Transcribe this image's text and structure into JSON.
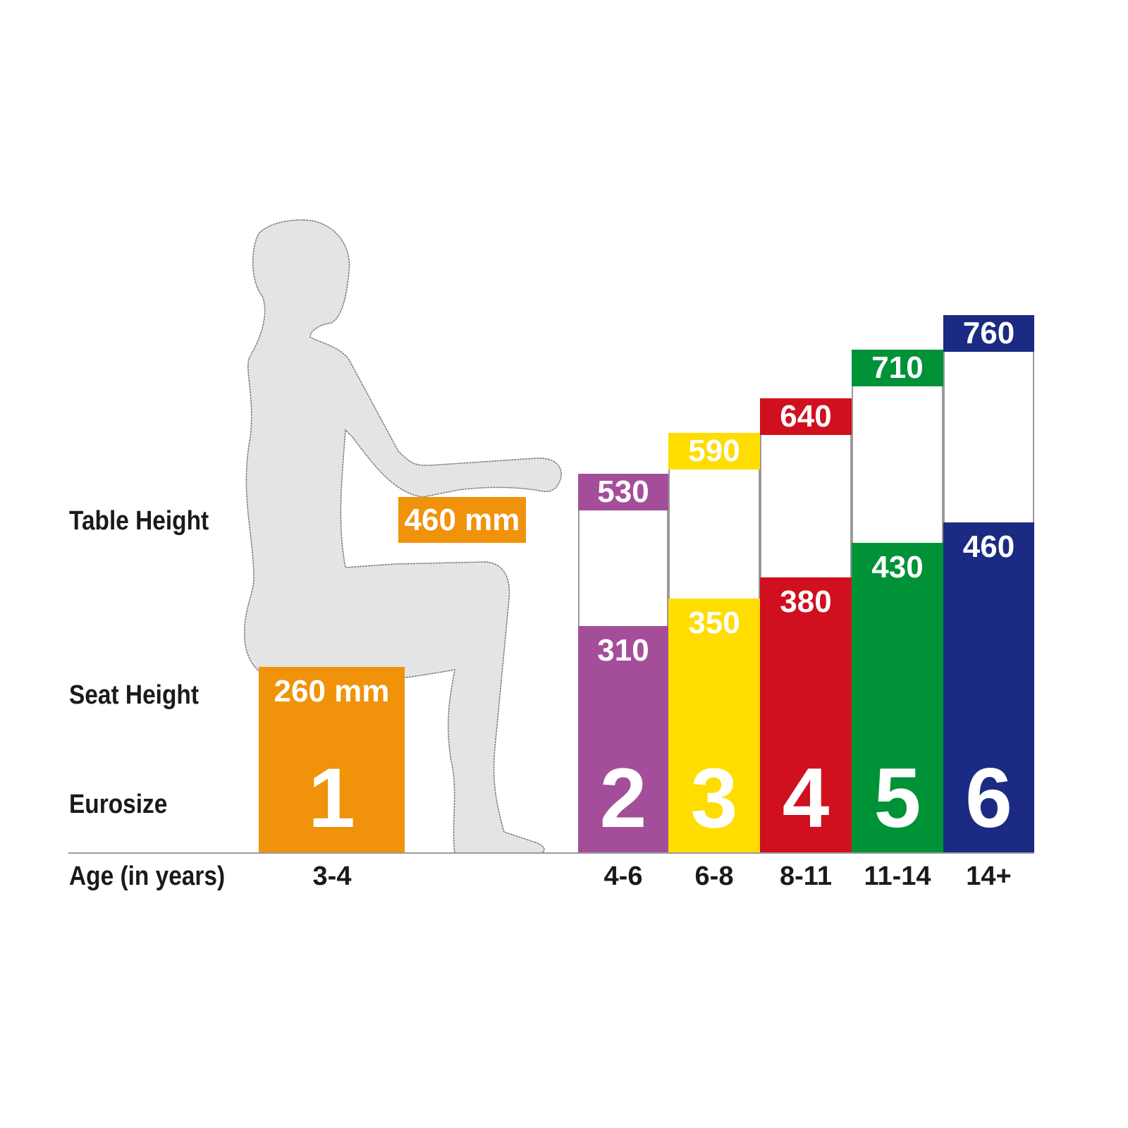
{
  "chart_data": {
    "type": "bar",
    "row_labels": {
      "table_height": "Table Height",
      "seat_height": "Seat Height",
      "eurosize": "Eurosize",
      "age": "Age (in years)"
    },
    "unit": "mm",
    "example": {
      "eurosize": "1",
      "age": "3-4",
      "seat_label": "260 mm",
      "table_label": "460 mm",
      "seat_height": 260,
      "table_height": 460,
      "color": "#f0920a"
    },
    "categories": [
      "4-6",
      "6-8",
      "8-11",
      "11-14",
      "14+"
    ],
    "eurosizes": [
      "2",
      "3",
      "4",
      "5",
      "6"
    ],
    "series": [
      {
        "name": "Seat Height",
        "values": [
          310,
          350,
          380,
          430,
          460
        ]
      },
      {
        "name": "Table Height",
        "values": [
          530,
          590,
          640,
          710,
          760
        ]
      }
    ],
    "colors": [
      "#a44e9a",
      "#ffdd00",
      "#d0101e",
      "#009237",
      "#1b2a82"
    ],
    "silhouette_color": "#e3e4e5"
  }
}
